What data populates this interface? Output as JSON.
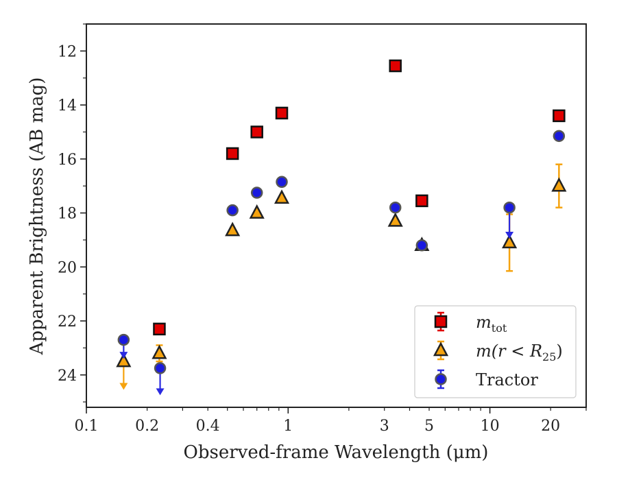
{
  "chart_data": {
    "type": "scatter",
    "title": "",
    "xlabel": "Observed-frame Wavelength (μm)",
    "ylabel": "Apparent Brightness (AB mag)",
    "xscale": "log",
    "xlim": [
      0.1,
      30
    ],
    "ylim": [
      25.2,
      11.0
    ],
    "y_inverted": true,
    "grid": false,
    "legend_position": "lower-right",
    "x_ticks": [
      {
        "value": 0.1,
        "label": "0.1"
      },
      {
        "value": 0.2,
        "label": "0.2"
      },
      {
        "value": 0.4,
        "label": "0.4"
      },
      {
        "value": 1,
        "label": "1"
      },
      {
        "value": 3,
        "label": "3"
      },
      {
        "value": 5,
        "label": "5"
      },
      {
        "value": 10,
        "label": "10"
      },
      {
        "value": 20,
        "label": "20"
      }
    ],
    "y_ticks": [
      {
        "value": 12,
        "label": "12"
      },
      {
        "value": 14,
        "label": "14"
      },
      {
        "value": 16,
        "label": "16"
      },
      {
        "value": 18,
        "label": "18"
      },
      {
        "value": 20,
        "label": "20"
      },
      {
        "value": 22,
        "label": "22"
      },
      {
        "value": 24,
        "label": "24"
      }
    ],
    "series": [
      {
        "name": "m_tot",
        "legend_main": "m",
        "legend_sub": "tot",
        "marker": "square",
        "color": "#e00000",
        "edge": "#111111",
        "errcolor": "#e00000",
        "points": [
          {
            "x": 0.23,
            "y": 22.3
          },
          {
            "x": 0.53,
            "y": 15.8
          },
          {
            "x": 0.7,
            "y": 15.0
          },
          {
            "x": 0.93,
            "y": 14.3
          },
          {
            "x": 3.4,
            "y": 12.55
          },
          {
            "x": 4.6,
            "y": 17.55
          },
          {
            "x": 22.0,
            "y": 14.4
          }
        ]
      },
      {
        "name": "m(r < R_25)",
        "legend_main": "m(r < R",
        "legend_sub": "25",
        "legend_tail": ")",
        "marker": "triangle",
        "color": "#f5a30f",
        "edge": "#222222",
        "errcolor": "#f5a30f",
        "points": [
          {
            "x": 0.153,
            "y": 23.5,
            "upper_limit": true,
            "arrow_to": 24.5
          },
          {
            "x": 0.23,
            "y": 23.2,
            "err": 0.3
          },
          {
            "x": 0.53,
            "y": 18.65
          },
          {
            "x": 0.7,
            "y": 18.0
          },
          {
            "x": 0.93,
            "y": 17.45
          },
          {
            "x": 3.4,
            "y": 18.3
          },
          {
            "x": 4.6,
            "y": 19.2
          },
          {
            "x": 12.5,
            "y": 19.1,
            "err": 1.05
          },
          {
            "x": 22.0,
            "y": 17.0,
            "err": 0.8
          }
        ]
      },
      {
        "name": "Tractor",
        "legend_main": "Tractor",
        "marker": "circle",
        "color": "#1a1adf",
        "edge": "#555555",
        "errcolor": "#2a2ae0",
        "points": [
          {
            "x": 0.153,
            "y": 22.7,
            "upper_limit": true,
            "arrow_to": 23.35
          },
          {
            "x": 0.232,
            "y": 23.75,
            "upper_limit": true,
            "arrow_to": 24.7
          },
          {
            "x": 0.53,
            "y": 17.9
          },
          {
            "x": 0.7,
            "y": 17.25
          },
          {
            "x": 0.93,
            "y": 16.85
          },
          {
            "x": 3.4,
            "y": 17.8
          },
          {
            "x": 4.6,
            "y": 19.2
          },
          {
            "x": 12.5,
            "y": 17.8,
            "upper_limit": true,
            "arrow_to": 18.9
          },
          {
            "x": 22.0,
            "y": 15.15
          }
        ]
      }
    ]
  }
}
